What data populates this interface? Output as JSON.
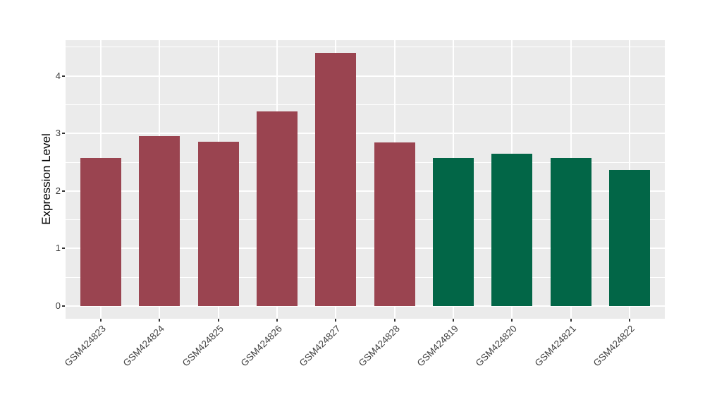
{
  "chart_data": {
    "type": "bar",
    "title": "",
    "ylabel": "Expression Level",
    "xlabel": "",
    "categories": [
      "GSM424823",
      "GSM424824",
      "GSM424825",
      "GSM424826",
      "GSM424827",
      "GSM424828",
      "GSM424819",
      "GSM424820",
      "GSM424821",
      "GSM424822"
    ],
    "values": [
      2.57,
      2.95,
      2.85,
      3.38,
      4.4,
      2.84,
      2.57,
      2.65,
      2.57,
      2.37
    ],
    "bar_colors": [
      "#9A4450",
      "#9A4450",
      "#9A4450",
      "#9A4450",
      "#9A4450",
      "#9A4450",
      "#026647",
      "#026647",
      "#026647",
      "#026647"
    ],
    "yticks": [
      0,
      1,
      2,
      3,
      4
    ],
    "ylim": [
      -0.22,
      4.62
    ],
    "bar_width_fraction": 0.7,
    "panel_background": "#EBEBEB",
    "gridline_color": "#FFFFFF",
    "axis_text_color": "#404040",
    "legend": "none",
    "grid": "on"
  }
}
